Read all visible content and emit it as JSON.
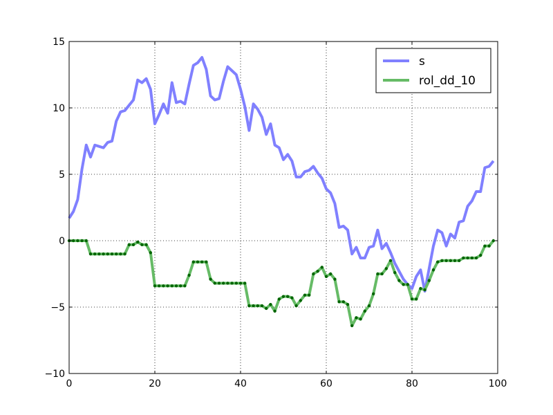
{
  "chart_data": {
    "type": "line",
    "title": "",
    "xlabel": "",
    "ylabel": "",
    "xlim": [
      0,
      100
    ],
    "ylim": [
      -10,
      15
    ],
    "grid": true,
    "legend_position": "top-right",
    "x_ticks": [
      0,
      20,
      40,
      60,
      80,
      100
    ],
    "y_ticks": [
      -10,
      -5,
      0,
      5,
      10,
      15
    ],
    "x_tick_labels": [
      "0",
      "20",
      "40",
      "60",
      "80",
      "100"
    ],
    "y_tick_labels": [
      "−10",
      "−5",
      "0",
      "5",
      "10",
      "15"
    ],
    "x": [
      0,
      1,
      2,
      3,
      4,
      5,
      6,
      7,
      8,
      9,
      10,
      11,
      12,
      13,
      14,
      15,
      16,
      17,
      18,
      19,
      20,
      21,
      22,
      23,
      24,
      25,
      26,
      27,
      28,
      29,
      30,
      31,
      32,
      33,
      34,
      35,
      36,
      37,
      38,
      39,
      40,
      41,
      42,
      43,
      44,
      45,
      46,
      47,
      48,
      49,
      50,
      51,
      52,
      53,
      54,
      55,
      56,
      57,
      58,
      59,
      60,
      61,
      62,
      63,
      64,
      65,
      66,
      67,
      68,
      69,
      70,
      71,
      72,
      73,
      74,
      75,
      76,
      77,
      78,
      79,
      80,
      81,
      82,
      83,
      84,
      85,
      86,
      87,
      88,
      89,
      90,
      91,
      92,
      93,
      94,
      95,
      96,
      97,
      98,
      99
    ],
    "series": [
      {
        "name": "s",
        "color": "#8080ff",
        "values": [
          1.7,
          2.2,
          3.1,
          5.4,
          7.2,
          6.3,
          7.2,
          7.1,
          7.0,
          7.4,
          7.5,
          9.0,
          9.7,
          9.8,
          10.2,
          10.6,
          12.1,
          11.9,
          12.2,
          11.4,
          8.8,
          9.5,
          10.3,
          9.6,
          11.9,
          10.4,
          10.5,
          10.3,
          11.8,
          13.2,
          13.4,
          13.8,
          12.9,
          10.9,
          10.6,
          10.7,
          12.0,
          13.1,
          12.8,
          12.5,
          11.4,
          10.1,
          8.3,
          10.3,
          9.9,
          9.3,
          8.0,
          8.8,
          7.2,
          7.0,
          6.1,
          6.5,
          6.0,
          4.8,
          4.8,
          5.2,
          5.3,
          5.6,
          5.1,
          4.7,
          3.9,
          3.6,
          2.8,
          1.0,
          1.1,
          0.8,
          -1.0,
          -0.5,
          -1.3,
          -1.3,
          -0.5,
          -0.4,
          0.8,
          -0.6,
          -0.2,
          -0.9,
          -1.7,
          -2.3,
          -2.9,
          -3.3,
          -3.6,
          -2.7,
          -2.2,
          -3.8,
          -2.1,
          -0.4,
          0.8,
          0.6,
          -0.4,
          0.5,
          0.2,
          1.4,
          1.5,
          2.6,
          3.0,
          3.7,
          3.7,
          5.5,
          5.6,
          6.0
        ]
      },
      {
        "name": "rol_dd_10",
        "color": "#66bb66",
        "marker_color": "#006400",
        "values": [
          0,
          0,
          0,
          0,
          0,
          -1.0,
          -1.0,
          -1.0,
          -1.0,
          -1.0,
          -1.0,
          -1.0,
          -1.0,
          -1.0,
          -0.3,
          -0.3,
          -0.1,
          -0.3,
          -0.3,
          -0.9,
          -3.4,
          -3.4,
          -3.4,
          -3.4,
          -3.4,
          -3.4,
          -3.4,
          -3.4,
          -2.6,
          -1.6,
          -1.6,
          -1.6,
          -1.6,
          -2.9,
          -3.2,
          -3.2,
          -3.2,
          -3.2,
          -3.2,
          -3.2,
          -3.2,
          -3.2,
          -4.9,
          -4.9,
          -4.9,
          -4.9,
          -5.1,
          -4.8,
          -5.3,
          -4.4,
          -4.2,
          -4.2,
          -4.3,
          -4.9,
          -4.5,
          -4.1,
          -4.1,
          -2.5,
          -2.3,
          -2.0,
          -2.7,
          -2.5,
          -2.9,
          -4.6,
          -4.6,
          -4.8,
          -6.4,
          -5.8,
          -5.9,
          -5.3,
          -4.9,
          -4.0,
          -2.5,
          -2.5,
          -2.1,
          -1.5,
          -2.4,
          -3.0,
          -3.3,
          -3.3,
          -4.4,
          -4.4,
          -3.6,
          -3.7,
          -3.0,
          -2.2,
          -1.6,
          -1.5,
          -1.5,
          -1.5,
          -1.5,
          -1.5,
          -1.3,
          -1.3,
          -1.3,
          -1.3,
          -1.1,
          -0.4,
          -0.4,
          0
        ]
      }
    ]
  }
}
